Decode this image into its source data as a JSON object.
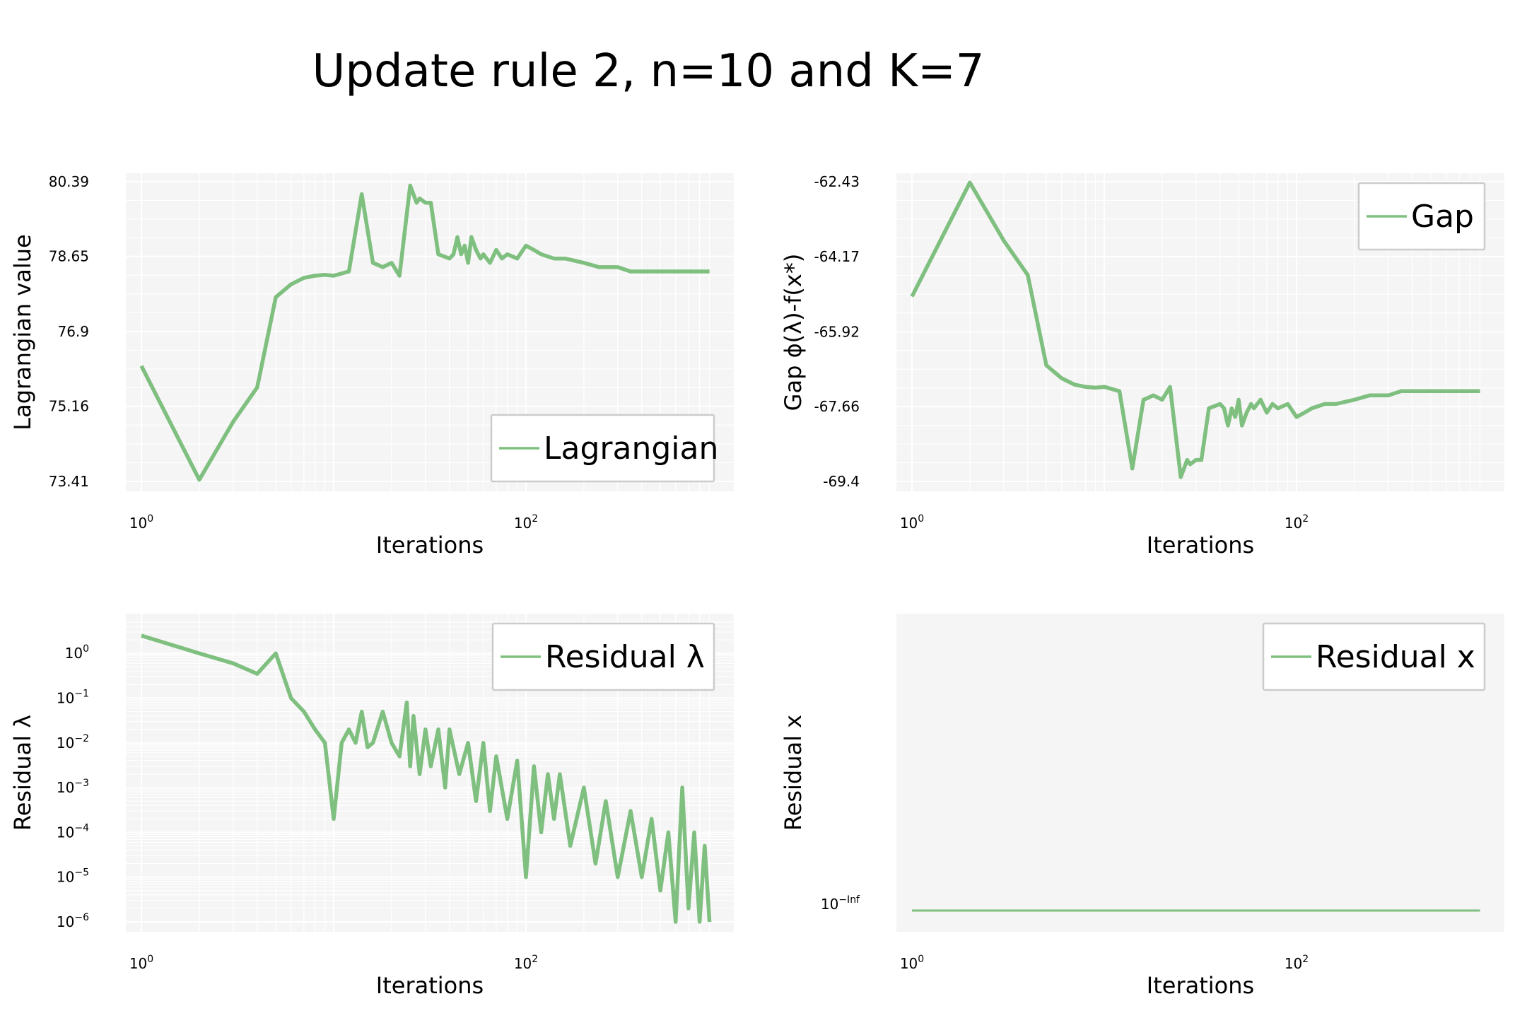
{
  "title": "Update rule 2, n=10 and K=7",
  "colors": {
    "line": "#7fbf7f",
    "panel_bg": "#f5f5f5",
    "grid": "#ffffff",
    "legend_bg": "#ffffff",
    "legend_border": "#cccccc"
  },
  "chart_data": [
    {
      "type": "line",
      "xscale": "log",
      "xlim": [
        1,
        1000
      ],
      "xticks": [
        "10^0",
        "10^2"
      ],
      "ylim": [
        73.41,
        80.39
      ],
      "yticks": [
        "80.39",
        "78.65",
        "76.9",
        "75.16",
        "73.41"
      ],
      "ytick_values": [
        80.39,
        78.65,
        76.9,
        75.16,
        73.41
      ],
      "xlabel": "Iterations",
      "ylabel": "Lagrangian value",
      "legend": "bottom-right",
      "grid": true,
      "series": [
        {
          "name": "Lagrangian",
          "x": [
            1,
            2,
            3,
            4,
            5,
            6,
            7,
            8,
            9,
            10,
            12,
            14,
            16,
            17,
            18,
            20,
            22,
            25,
            27,
            28,
            30,
            32,
            35,
            40,
            42,
            44,
            46,
            48,
            50,
            52,
            55,
            58,
            60,
            65,
            70,
            75,
            80,
            90,
            100,
            110,
            120,
            140,
            160,
            200,
            240,
            300,
            350,
            400,
            500,
            600,
            700,
            800,
            900
          ],
          "y": [
            76.1,
            73.45,
            74.8,
            75.6,
            77.7,
            78.0,
            78.15,
            78.2,
            78.22,
            78.2,
            78.3,
            80.1,
            78.5,
            78.45,
            78.4,
            78.5,
            78.2,
            80.3,
            79.9,
            80.0,
            79.9,
            79.9,
            78.7,
            78.6,
            78.7,
            79.1,
            78.7,
            78.9,
            78.5,
            79.1,
            78.8,
            78.6,
            78.7,
            78.5,
            78.8,
            78.6,
            78.7,
            78.6,
            78.9,
            78.8,
            78.7,
            78.6,
            78.6,
            78.5,
            78.4,
            78.4,
            78.3,
            78.3,
            78.3,
            78.3,
            78.3,
            78.3,
            78.3
          ]
        }
      ]
    },
    {
      "type": "line",
      "xscale": "log",
      "xlim": [
        1,
        1000
      ],
      "xticks": [
        "10^0",
        "10^2"
      ],
      "ylim": [
        -69.4,
        -62.43
      ],
      "yticks": [
        "-62.43",
        "-64.17",
        "-65.92",
        "-67.66",
        "-69.4"
      ],
      "ytick_values": [
        -62.43,
        -64.17,
        -65.92,
        -67.66,
        -69.4
      ],
      "xlabel": "Iterations",
      "ylabel": "Gap ϕ(λ)-f(x*)",
      "legend": "top-right",
      "grid": true,
      "series": [
        {
          "name": "Gap",
          "x": [
            1,
            2,
            3,
            4,
            5,
            6,
            7,
            8,
            9,
            10,
            12,
            14,
            16,
            17,
            18,
            20,
            22,
            25,
            27,
            28,
            30,
            32,
            35,
            40,
            42,
            44,
            46,
            48,
            50,
            52,
            55,
            58,
            60,
            65,
            70,
            75,
            80,
            90,
            100,
            110,
            120,
            140,
            160,
            200,
            240,
            300,
            350,
            400,
            500,
            600,
            700,
            800,
            900
          ],
          "y": [
            -65.1,
            -62.45,
            -63.8,
            -64.6,
            -66.7,
            -67.0,
            -67.15,
            -67.2,
            -67.22,
            -67.2,
            -67.3,
            -69.1,
            -67.5,
            -67.45,
            -67.4,
            -67.5,
            -67.2,
            -69.3,
            -68.9,
            -69.0,
            -68.9,
            -68.9,
            -67.7,
            -67.6,
            -67.7,
            -68.1,
            -67.7,
            -67.9,
            -67.5,
            -68.1,
            -67.8,
            -67.6,
            -67.7,
            -67.5,
            -67.8,
            -67.6,
            -67.7,
            -67.6,
            -67.9,
            -67.8,
            -67.7,
            -67.6,
            -67.6,
            -67.5,
            -67.4,
            -67.4,
            -67.3,
            -67.3,
            -67.3,
            -67.3,
            -67.3,
            -67.3,
            -67.3
          ]
        }
      ]
    },
    {
      "type": "line",
      "xscale": "log",
      "yscale": "log",
      "xlim": [
        1,
        1000
      ],
      "xticks": [
        "10^0",
        "10^2"
      ],
      "ylim": [
        1e-06,
        5
      ],
      "yticks": [
        "10^0",
        "10^-1",
        "10^-2",
        "10^-3",
        "10^-4",
        "10^-5",
        "10^-6"
      ],
      "ytick_values": [
        1,
        0.1,
        0.01,
        0.001,
        0.0001,
        1e-05,
        1e-06
      ],
      "xlabel": "Iterations",
      "ylabel": "Residual λ",
      "legend": "top-right",
      "grid": true,
      "series": [
        {
          "name": "Residual λ",
          "x": [
            1,
            2,
            3,
            4,
            5,
            6,
            7,
            8,
            9,
            10,
            11,
            12,
            13,
            14,
            15,
            16,
            18,
            20,
            22,
            24,
            25,
            26,
            28,
            30,
            32,
            35,
            38,
            40,
            45,
            50,
            55,
            60,
            65,
            70,
            80,
            90,
            100,
            110,
            120,
            130,
            140,
            150,
            170,
            200,
            230,
            260,
            300,
            350,
            400,
            450,
            500,
            550,
            600,
            650,
            700,
            750,
            800,
            850,
            900
          ],
          "y": [
            2.5,
            1.0,
            0.6,
            0.35,
            1.0,
            0.1,
            0.05,
            0.02,
            0.01,
            0.0002,
            0.01,
            0.02,
            0.01,
            0.05,
            0.008,
            0.01,
            0.05,
            0.01,
            0.005,
            0.08,
            0.003,
            0.04,
            0.002,
            0.02,
            0.003,
            0.02,
            0.001,
            0.02,
            0.002,
            0.01,
            0.0005,
            0.01,
            0.0003,
            0.005,
            0.0002,
            0.004,
            1e-05,
            0.003,
            0.0001,
            0.002,
            0.0002,
            0.002,
            5e-05,
            0.001,
            2e-05,
            0.0005,
            1e-05,
            0.0003,
            1e-05,
            0.0002,
            5e-06,
            0.0001,
            1e-06,
            0.001,
            2e-06,
            0.0001,
            1e-06,
            5e-05,
            1e-06
          ]
        }
      ]
    },
    {
      "type": "line",
      "xscale": "log",
      "xlim": [
        1,
        1000
      ],
      "xticks": [
        "10^0",
        "10^2"
      ],
      "yticks": [
        "10^-Inf"
      ],
      "xlabel": "Iterations",
      "ylabel": "Residual x",
      "legend": "top-right",
      "grid": false,
      "series": [
        {
          "name": "Residual x",
          "x": [
            1,
            900
          ],
          "y": [
            0,
            0
          ]
        }
      ]
    }
  ]
}
